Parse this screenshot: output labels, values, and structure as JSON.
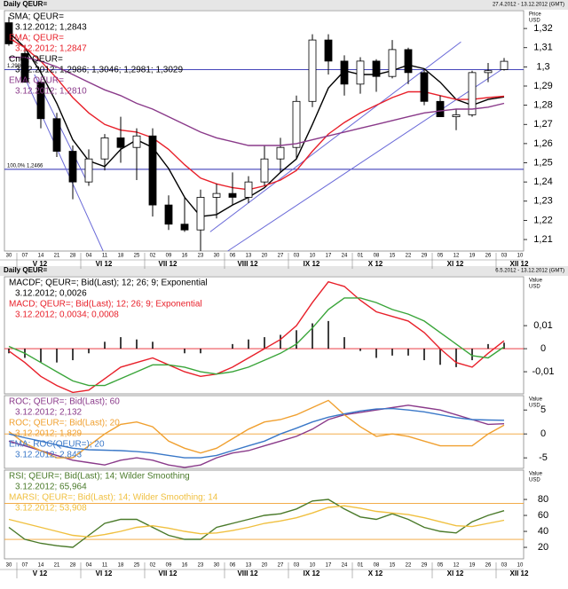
{
  "chart_data": [
    {
      "type": "candlestick",
      "title": "Daily QEUR=",
      "date_range": "27.4.2012 - 13.12.2012 (GMT)",
      "y_label": "Price",
      "y_unit": "USD",
      "categories": [
        "30",
        "07",
        "14",
        "21",
        "28",
        "04",
        "11",
        "18",
        "25",
        "02",
        "09",
        "16",
        "23",
        "30",
        "06",
        "13",
        "20",
        "27",
        "03",
        "10",
        "17",
        "24",
        "01",
        "08",
        "15",
        "22",
        "29",
        "05",
        "12",
        "19",
        "26",
        "03",
        "10"
      ],
      "months": [
        null,
        "V 12",
        null,
        null,
        null,
        "VI 12",
        null,
        null,
        null,
        "VII 12",
        null,
        null,
        null,
        null,
        "VIII 12",
        null,
        null,
        null,
        "IX 12",
        null,
        null,
        null,
        "X 12",
        null,
        null,
        null,
        null,
        "XI 12",
        null,
        null,
        null,
        "XII 12",
        null
      ],
      "ylim": [
        1.204,
        1.3293
      ],
      "yticks": [
        {
          "value": 1.21,
          "label": "1,21"
        },
        {
          "value": 1.22,
          "label": "1,22"
        },
        {
          "value": 1.23,
          "label": "1,23"
        },
        {
          "value": 1.24,
          "label": "1,24"
        },
        {
          "value": 1.25,
          "label": "1,25"
        },
        {
          "value": 1.26,
          "label": "1,26"
        },
        {
          "value": 1.27,
          "label": "1,27"
        },
        {
          "value": 1.28,
          "label": "1,28"
        },
        {
          "value": 1.29,
          "label": "1,29"
        },
        {
          "value": 1.3,
          "label": "1,3"
        },
        {
          "value": 1.31,
          "label": "1,31"
        },
        {
          "value": 1.32,
          "label": "1,32"
        }
      ],
      "hlines": [
        {
          "value": 1.2986,
          "label": "1,2986",
          "color": "#2b2bb0"
        },
        {
          "value": 1.2466,
          "label": "100,0% 1,2466",
          "color": "#2b2bb0"
        }
      ],
      "trend_lines": [
        {
          "x": [
            0.8,
            5.9
          ],
          "y": [
            1.298,
            1.204
          ],
          "color": "#6a6ad8"
        },
        {
          "x": [
            1.6,
            4.9
          ],
          "y": [
            1.296,
            1.24
          ],
          "color": "#6a6ad8"
        },
        {
          "x": [
            12.6,
            28.3
          ],
          "y": [
            1.214,
            1.313
          ],
          "color": "#6a6ad8"
        },
        {
          "x": [
            13.7,
            31.1
          ],
          "y": [
            1.204,
            1.3
          ],
          "color": "#6a6ad8"
        }
      ],
      "series": [
        {
          "name": "SMA; QEUR=",
          "last_label": "3.12.2012; 1,2843",
          "color": "#000000",
          "values": [
            1.318,
            1.31,
            1.297,
            1.281,
            1.262,
            1.251,
            1.248,
            1.257,
            1.262,
            1.258,
            1.247,
            1.232,
            1.222,
            1.223,
            1.228,
            1.232,
            1.237,
            1.245,
            1.252,
            1.27,
            1.289,
            1.298,
            1.296,
            1.296,
            1.298,
            1.301,
            1.299,
            1.292,
            1.283,
            1.28,
            1.283,
            1.2843,
            null
          ]
        },
        {
          "name": "EMA; QEUR=",
          "last_label": "3.12.2012; 1,2847",
          "color": "#e8202a",
          "values": [
            1.315,
            1.31,
            1.303,
            1.294,
            1.284,
            1.276,
            1.27,
            1.267,
            1.266,
            1.263,
            1.257,
            1.249,
            1.242,
            1.239,
            1.237,
            1.236,
            1.238,
            1.241,
            1.246,
            1.256,
            1.265,
            1.271,
            1.276,
            1.28,
            1.284,
            1.287,
            1.287,
            1.285,
            1.283,
            1.283,
            1.284,
            1.2847,
            null
          ]
        },
        {
          "name": "Cndl; QEUR=",
          "last_label": "3.12.2012; 1,2986; 1,3046; 1,2981; 1,3029",
          "color": "#000000",
          "open": [
            1.323,
            1.307,
            1.292,
            1.273,
            1.256,
            1.24,
            1.252,
            1.263,
            1.258,
            1.264,
            1.228,
            1.218,
            1.215,
            1.232,
            1.234,
            1.232,
            1.24,
            1.252,
            1.258,
            1.282,
            1.314,
            1.303,
            1.291,
            1.303,
            1.295,
            1.309,
            1.297,
            1.282,
            1.274,
            1.275,
            1.297,
            1.2986,
            null
          ],
          "high": [
            1.326,
            1.31,
            1.293,
            1.276,
            1.259,
            1.257,
            1.265,
            1.274,
            1.268,
            1.268,
            1.233,
            1.232,
            1.236,
            1.239,
            1.245,
            1.243,
            1.259,
            1.263,
            1.285,
            1.317,
            1.317,
            1.306,
            1.305,
            1.304,
            1.314,
            1.31,
            1.299,
            1.285,
            1.278,
            1.298,
            1.302,
            1.3046,
            null
          ],
          "low": [
            1.311,
            1.292,
            1.268,
            1.253,
            1.231,
            1.238,
            1.246,
            1.25,
            1.241,
            1.222,
            1.215,
            1.214,
            1.204,
            1.221,
            1.228,
            1.229,
            1.238,
            1.245,
            1.252,
            1.279,
            1.296,
            1.285,
            1.286,
            1.287,
            1.294,
            1.291,
            1.28,
            1.274,
            1.267,
            1.274,
            1.292,
            1.2981,
            null
          ],
          "close": [
            1.312,
            1.292,
            1.273,
            1.256,
            1.24,
            1.252,
            1.263,
            1.258,
            1.264,
            1.228,
            1.218,
            1.215,
            1.232,
            1.234,
            1.232,
            1.24,
            1.252,
            1.258,
            1.282,
            1.314,
            1.303,
            1.291,
            1.303,
            1.295,
            1.309,
            1.297,
            1.282,
            1.274,
            1.275,
            1.297,
            1.298,
            1.3029,
            null
          ]
        },
        {
          "name": "EMA; QEUR=",
          "last_label": "3.12.2012; 1,2810",
          "color": "#8a3a8a",
          "values": [
            1.305,
            1.305,
            1.303,
            1.3,
            1.296,
            1.292,
            1.288,
            1.285,
            1.281,
            1.278,
            1.274,
            1.27,
            1.266,
            1.263,
            1.261,
            1.259,
            1.259,
            1.259,
            1.26,
            1.262,
            1.264,
            1.266,
            1.268,
            1.27,
            1.272,
            1.274,
            1.276,
            1.277,
            1.278,
            1.278,
            1.279,
            1.281,
            null
          ]
        }
      ]
    },
    {
      "type": "line",
      "title": "Daily QEUR=",
      "date_range": "6.5.2012 - 13.12.2012 (GMT)",
      "y_label": "Value",
      "y_unit": "USD",
      "ylim": [
        -0.0196,
        0.0312
      ],
      "yticks": [
        {
          "value": -0.01,
          "label": "-0,01"
        },
        0,
        {
          "value": 0.01,
          "label": "0,01"
        }
      ],
      "hlines": [
        {
          "value": 0,
          "color": "#e8202a"
        }
      ],
      "series": [
        {
          "name": "MACDF; QEUR=; Bid(Last); 12; 26; 9; Exponential",
          "last_label": "3.12.2012; 0,0026",
          "color": "#000000",
          "style": "histogram",
          "values": [
            -0.002,
            -0.004,
            -0.006,
            -0.006,
            -0.005,
            -0.002,
            0.003,
            0.005,
            0.004,
            0.003,
            0,
            -0.002,
            -0.002,
            0,
            0.002,
            0.004,
            0.005,
            0.006,
            0.008,
            0.011,
            0.012,
            0.005,
            -0.001,
            -0.004,
            -0.003,
            -0.003,
            -0.005,
            -0.007,
            -0.008,
            -0.005,
            0.002,
            0.0026,
            null
          ]
        },
        {
          "name": "MACD; QEUR=; Bid(Last); 12; 26; 9; Exponential",
          "last_label": "3.12.2012; 0,0034; 0,0008",
          "color": "#e8202a",
          "values": [
            -0.001,
            -0.006,
            -0.012,
            -0.016,
            -0.019,
            -0.018,
            -0.013,
            -0.008,
            -0.006,
            -0.004,
            -0.007,
            -0.01,
            -0.012,
            -0.011,
            -0.008,
            -0.004,
            0,
            0.004,
            0.01,
            0.02,
            0.029,
            0.027,
            0.021,
            0.016,
            0.014,
            0.012,
            0.007,
            0,
            -0.006,
            -0.008,
            -0.002,
            0.0034,
            null
          ]
        },
        {
          "color": "#3aa53a",
          "values": [
            0.001,
            -0.002,
            -0.006,
            -0.01,
            -0.014,
            -0.016,
            -0.016,
            -0.013,
            -0.01,
            -0.007,
            -0.007,
            -0.008,
            -0.01,
            -0.011,
            -0.01,
            -0.008,
            -0.005,
            -0.002,
            0.002,
            0.009,
            0.017,
            0.022,
            0.022,
            0.02,
            0.017,
            0.015,
            0.012,
            0.007,
            0.002,
            -0.003,
            -0.004,
            0.0008,
            null
          ]
        }
      ]
    },
    {
      "type": "line",
      "y_label": "Value",
      "y_unit": "USD",
      "ylim": [
        -7.2,
        8.0
      ],
      "yticks": [
        -5,
        0,
        5
      ],
      "hlines": [
        {
          "value": 0,
          "color": "#f0a030"
        }
      ],
      "series": [
        {
          "name": "ROC; QEUR=; Bid(Last); 60",
          "last_label": "3.12.2012; 2,132",
          "color": "#8a3a8a",
          "values": [
            -1.5,
            -2.5,
            -3.5,
            -4.5,
            -5.5,
            -6,
            -6.5,
            -5.5,
            -5,
            -5.5,
            -6.5,
            -7,
            -6.5,
            -5,
            -4,
            -3.5,
            -2.5,
            -1.5,
            -0.5,
            1,
            3,
            4,
            4.5,
            5,
            5.5,
            6,
            5.5,
            5,
            4,
            3,
            2,
            2.132,
            null
          ]
        },
        {
          "name": "ROC; QEUR=; Bid(Last); 20",
          "last_label": "3.12.2012; 1,829",
          "color": "#f0a030",
          "values": [
            0.5,
            -2,
            -3.5,
            -5,
            -5,
            -2.5,
            0,
            2,
            2.5,
            1.5,
            -1.5,
            -3,
            -4,
            -3,
            -1,
            1,
            2.5,
            3,
            4,
            5.5,
            7,
            4,
            1.5,
            -0.5,
            0,
            -0.5,
            -1.5,
            -2.5,
            -2.5,
            -2.5,
            0,
            1.829,
            null
          ]
        },
        {
          "name": "EMA; ROC(QEUR=); 20",
          "last_label": "3.12.2012; 2,843",
          "color": "#3a78c8",
          "values": [
            0,
            -0.8,
            -1.5,
            -2.3,
            -3,
            -3.3,
            -3.4,
            -3.5,
            -3.7,
            -4,
            -4.5,
            -5,
            -5,
            -4.5,
            -3.5,
            -2.5,
            -1.5,
            0,
            1.2,
            2.5,
            3.5,
            4.2,
            4.8,
            5.2,
            5.3,
            5,
            4.6,
            4,
            3.4,
            3,
            2.9,
            2.843,
            null
          ]
        }
      ]
    },
    {
      "type": "line",
      "y_label": "Value",
      "y_unit": "USD",
      "categories": [
        "30",
        "07",
        "14",
        "21",
        "28",
        "04",
        "11",
        "18",
        "25",
        "02",
        "09",
        "16",
        "23",
        "30",
        "06",
        "13",
        "20",
        "27",
        "03",
        "10",
        "17",
        "24",
        "01",
        "08",
        "15",
        "22",
        "29",
        "05",
        "12",
        "19",
        "26",
        "03",
        "10"
      ],
      "months": [
        null,
        "V 12",
        null,
        null,
        null,
        "VI 12",
        null,
        null,
        null,
        "VII 12",
        null,
        null,
        null,
        null,
        "VIII 12",
        null,
        null,
        null,
        "IX 12",
        null,
        null,
        null,
        "X 12",
        null,
        null,
        null,
        null,
        "XI 12",
        null,
        null,
        null,
        "XII 12",
        null
      ],
      "ylim": [
        5.6,
        116.7
      ],
      "yticks": [
        20,
        40,
        60,
        80
      ],
      "hlines": [
        {
          "value": 75,
          "color": "#f0a030"
        },
        {
          "value": 30,
          "color": "#f0a030"
        }
      ],
      "series": [
        {
          "name": "RSI; QEUR=; Bid(Last); 14; Wilder Smoothing",
          "last_label": "3.12.2012; 65,964",
          "color": "#4a7a2a",
          "values": [
            45,
            30,
            25,
            22,
            20,
            35,
            50,
            55,
            55,
            45,
            35,
            30,
            30,
            45,
            50,
            55,
            60,
            62,
            68,
            78,
            80,
            68,
            58,
            55,
            62,
            55,
            45,
            40,
            38,
            52,
            60,
            65.964,
            null
          ]
        },
        {
          "name": "MARSI; QEUR=; Bid(Last); 14; Wilder Smoothing; 14",
          "last_label": "3.12.2012; 53,908",
          "color": "#f0c040",
          "values": [
            55,
            50,
            45,
            40,
            35,
            33,
            36,
            40,
            45,
            47,
            44,
            40,
            37,
            38,
            41,
            45,
            50,
            53,
            57,
            63,
            70,
            72,
            69,
            65,
            63,
            61,
            57,
            52,
            47,
            46,
            50,
            53.908,
            null
          ]
        }
      ]
    }
  ]
}
